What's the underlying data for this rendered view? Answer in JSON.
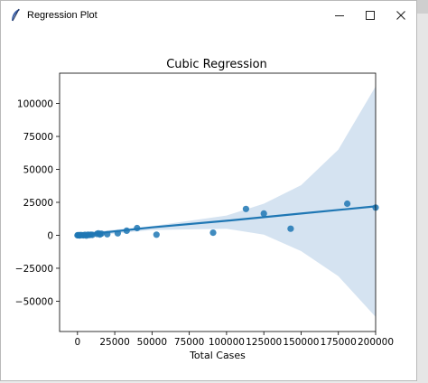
{
  "window": {
    "title": "Regression Plot",
    "app_icon": "feather-icon",
    "controls": {
      "minimize_icon": "minimize-icon",
      "maximize_icon": "maximize-icon",
      "close_icon": "close-icon"
    }
  },
  "chart_data": {
    "type": "scatter",
    "title": "Cubic Regression",
    "xlabel": "Total Cases",
    "ylabel": "",
    "xlim": [
      -12000,
      200000
    ],
    "ylim": [
      -73000,
      123000
    ],
    "xticks": [
      0,
      25000,
      50000,
      75000,
      100000,
      125000,
      150000,
      175000,
      200000
    ],
    "yticks": [
      -50000,
      -25000,
      0,
      25000,
      50000,
      75000,
      100000
    ],
    "grid": false,
    "colors": {
      "points": "#1f77b4",
      "fit": "#1f77b4",
      "band": "#d5e3f1"
    },
    "points": [
      {
        "x": 0,
        "y": 0
      },
      {
        "x": 500,
        "y": 100
      },
      {
        "x": 1000,
        "y": 0
      },
      {
        "x": 1500,
        "y": -100
      },
      {
        "x": 2000,
        "y": 200
      },
      {
        "x": 3000,
        "y": 100
      },
      {
        "x": 4000,
        "y": 0
      },
      {
        "x": 5000,
        "y": 300
      },
      {
        "x": 6000,
        "y": -200
      },
      {
        "x": 7000,
        "y": 400
      },
      {
        "x": 8000,
        "y": 200
      },
      {
        "x": 9000,
        "y": 500
      },
      {
        "x": 10000,
        "y": 300
      },
      {
        "x": 13000,
        "y": 1000
      },
      {
        "x": 14000,
        "y": 1500
      },
      {
        "x": 15000,
        "y": 600
      },
      {
        "x": 16000,
        "y": 1200
      },
      {
        "x": 20000,
        "y": 800
      },
      {
        "x": 27000,
        "y": 1500
      },
      {
        "x": 33000,
        "y": 3500
      },
      {
        "x": 40000,
        "y": 5500
      },
      {
        "x": 53000,
        "y": 500
      },
      {
        "x": 91000,
        "y": 2000
      },
      {
        "x": 113000,
        "y": 20000
      },
      {
        "x": 125000,
        "y": 16500
      },
      {
        "x": 143000,
        "y": 5000
      },
      {
        "x": 181000,
        "y": 24000
      },
      {
        "x": 200000,
        "y": 21000
      }
    ],
    "fit_line": [
      {
        "x": 0,
        "y": 0
      },
      {
        "x": 50000,
        "y": 6000
      },
      {
        "x": 100000,
        "y": 11000
      },
      {
        "x": 150000,
        "y": 16500
      },
      {
        "x": 200000,
        "y": 22000
      }
    ],
    "band_upper": [
      {
        "x": 0,
        "y": 1500
      },
      {
        "x": 50000,
        "y": 7000
      },
      {
        "x": 100000,
        "y": 15000
      },
      {
        "x": 125000,
        "y": 24000
      },
      {
        "x": 150000,
        "y": 38000
      },
      {
        "x": 175000,
        "y": 65000
      },
      {
        "x": 200000,
        "y": 113000
      }
    ],
    "band_lower": [
      {
        "x": 0,
        "y": -1500
      },
      {
        "x": 50000,
        "y": 4000
      },
      {
        "x": 100000,
        "y": 5000
      },
      {
        "x": 125000,
        "y": 500
      },
      {
        "x": 150000,
        "y": -12000
      },
      {
        "x": 175000,
        "y": -31000
      },
      {
        "x": 200000,
        "y": -62000
      }
    ]
  }
}
